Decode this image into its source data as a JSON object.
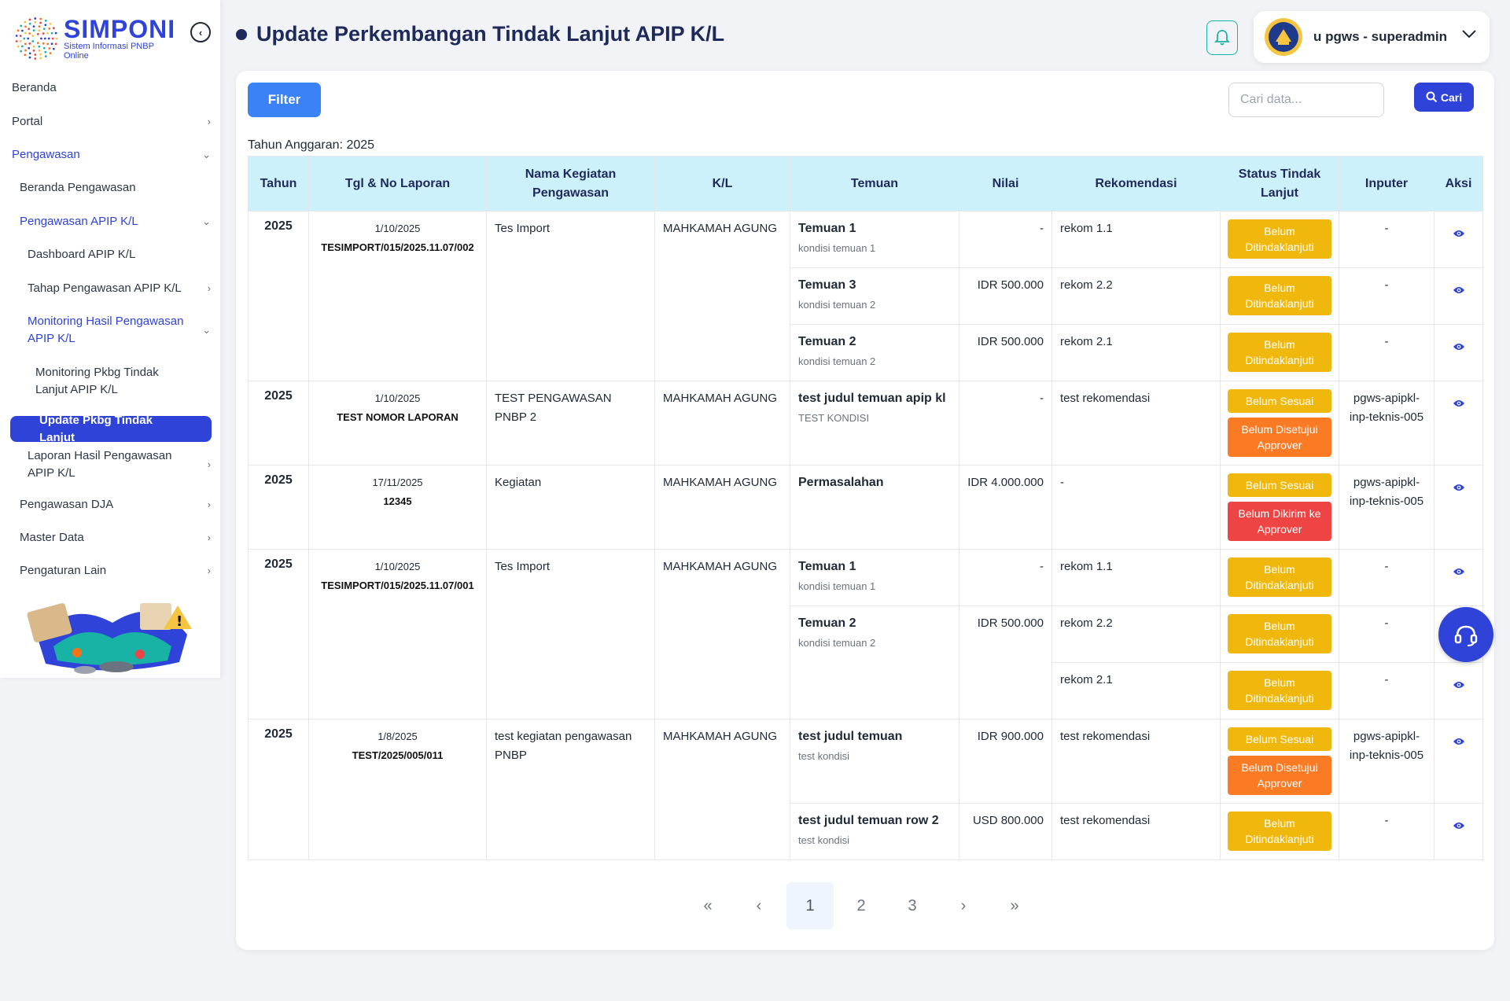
{
  "brand": {
    "title": "SIMPONI",
    "subtitle": "Sistem Informasi PNBP Online"
  },
  "sidebar": {
    "items": [
      {
        "label": "Beranda",
        "level": 0,
        "chevron": ""
      },
      {
        "label": "Portal",
        "level": 0,
        "chevron": "›"
      },
      {
        "label": "Pengawasan",
        "level": 0,
        "chevron": "⌄"
      },
      {
        "label": "Beranda Pengawasan",
        "level": 1,
        "chevron": ""
      },
      {
        "label": "Pengawasan APIP K/L",
        "level": 1,
        "chevron": "⌄"
      },
      {
        "label": "Dashboard APIP K/L",
        "level": 2,
        "chevron": ""
      },
      {
        "label": "Tahap Pengawasan APIP K/L",
        "level": 2,
        "chevron": "›"
      },
      {
        "label": "Monitoring Hasil Pengawasan APIP K/L",
        "level": 2,
        "chevron": "⌄"
      },
      {
        "label": "Monitoring Pkbg Tindak Lanjut APIP K/L",
        "level": 3,
        "chevron": ""
      },
      {
        "label": "Update Pkbg Tindak Lanjut",
        "level": 3,
        "chevron": ""
      },
      {
        "label": "Laporan Hasil Pengawasan APIP K/L",
        "level": 2,
        "chevron": "›"
      },
      {
        "label": "Pengawasan DJA",
        "level": 1,
        "chevron": "›"
      },
      {
        "label": "Master Data",
        "level": 1,
        "chevron": "›"
      },
      {
        "label": "Pengaturan Lain",
        "level": 1,
        "chevron": "›"
      }
    ]
  },
  "header": {
    "title": "Update Perkembangan Tindak Lanjut APIP K/L",
    "user": "u pgws - superadmin"
  },
  "toolbar": {
    "filter_label": "Filter",
    "search_placeholder": "Cari data...",
    "search_label": "Cari"
  },
  "year_label": "Tahun Anggaran: 2025",
  "table": {
    "headers": [
      "Tahun",
      "Tgl & No Laporan",
      "Nama Kegiatan Pengawasan",
      "K/L",
      "Temuan",
      "Nilai",
      "Rekomendasi",
      "Status Tindak Lanjut",
      "Inputer",
      "Aksi"
    ],
    "groups": [
      {
        "tahun": "2025",
        "tgl": "1/10/2025",
        "no": "TESIMPORT/015/2025.11.07/002",
        "nama": "Tes Import",
        "kl": "MAHKAMAH AGUNG",
        "temuan": [
          {
            "title": "Temuan 1",
            "sub": "kondisi temuan 1",
            "nilai": "-",
            "rek": [
              {
                "text": "rekom 1.1",
                "status": [
                  {
                    "label": "Belum Ditindaklanjuti",
                    "color": "yellow"
                  }
                ],
                "inputer": "-"
              }
            ]
          },
          {
            "title": "Temuan 3",
            "sub": "kondisi temuan 2",
            "nilai": "IDR 500.000",
            "rek": [
              {
                "text": "rekom 2.2",
                "status": [
                  {
                    "label": "Belum Ditindaklanjuti",
                    "color": "yellow"
                  }
                ],
                "inputer": "-"
              }
            ]
          },
          {
            "title": "Temuan 2",
            "sub": "kondisi temuan 2",
            "nilai": "IDR 500.000",
            "rek": [
              {
                "text": "rekom 2.1",
                "status": [
                  {
                    "label": "Belum Ditindaklanjuti",
                    "color": "yellow"
                  }
                ],
                "inputer": "-"
              }
            ]
          }
        ]
      },
      {
        "tahun": "2025",
        "tgl": "1/10/2025",
        "no": "TEST NOMOR LAPORAN",
        "nama": "TEST PENGAWASAN PNBP 2",
        "kl": "MAHKAMAH AGUNG",
        "temuan": [
          {
            "title": "test judul temuan apip kl",
            "sub": "TEST KONDISI",
            "nilai": "-",
            "rek": [
              {
                "text": "test rekomendasi",
                "status": [
                  {
                    "label": "Belum Sesuai",
                    "color": "yellow"
                  },
                  {
                    "label": "Belum Disetujui Approver",
                    "color": "orange"
                  }
                ],
                "inputer": "pgws-apipkl-inp-teknis-005"
              }
            ]
          }
        ]
      },
      {
        "tahun": "2025",
        "tgl": "17/11/2025",
        "no": "12345",
        "nama": "Kegiatan",
        "kl": "MAHKAMAH AGUNG",
        "temuan": [
          {
            "title": "Permasalahan",
            "sub": "",
            "nilai": "IDR 4.000.000",
            "rek": [
              {
                "text": "-",
                "status": [
                  {
                    "label": "Belum Sesuai",
                    "color": "yellow"
                  },
                  {
                    "label": "Belum Dikirim ke Approver",
                    "color": "red"
                  }
                ],
                "inputer": "pgws-apipkl-inp-teknis-005"
              }
            ]
          }
        ]
      },
      {
        "tahun": "2025",
        "tgl": "1/10/2025",
        "no": "TESIMPORT/015/2025.11.07/001",
        "nama": "Tes Import",
        "kl": "MAHKAMAH AGUNG",
        "temuan": [
          {
            "title": "Temuan 1",
            "sub": "kondisi temuan 1",
            "nilai": "-",
            "rek": [
              {
                "text": "rekom 1.1",
                "status": [
                  {
                    "label": "Belum Ditindaklanjuti",
                    "color": "yellow"
                  }
                ],
                "inputer": "-"
              }
            ]
          },
          {
            "title": "Temuan 2",
            "sub": "kondisi temuan 2",
            "nilai": "IDR 500.000",
            "rek": [
              {
                "text": "rekom 2.2",
                "status": [
                  {
                    "label": "Belum Ditindaklanjuti",
                    "color": "yellow"
                  }
                ],
                "inputer": "-"
              },
              {
                "text": "rekom 2.1",
                "status": [
                  {
                    "label": "Belum Ditindaklanjuti",
                    "color": "yellow"
                  }
                ],
                "inputer": "-"
              }
            ]
          }
        ]
      },
      {
        "tahun": "2025",
        "tgl": "1/8/2025",
        "no": "TEST/2025/005/011",
        "nama": "test kegiatan pengawasan PNBP",
        "kl": "MAHKAMAH AGUNG",
        "temuan": [
          {
            "title": "test judul temuan",
            "sub": "test kondisi",
            "nilai": "IDR 900.000",
            "rek": [
              {
                "text": "test rekomendasi",
                "status": [
                  {
                    "label": "Belum Sesuai",
                    "color": "yellow"
                  },
                  {
                    "label": "Belum Disetujui Approver",
                    "color": "orange"
                  }
                ],
                "inputer": "pgws-apipkl-inp-teknis-005"
              }
            ]
          },
          {
            "title": "test judul temuan row 2",
            "sub": "test kondisi",
            "nilai": "USD 800.000",
            "rek": [
              {
                "text": "test rekomendasi",
                "status": [
                  {
                    "label": "Belum Ditindaklanjuti",
                    "color": "yellow"
                  }
                ],
                "inputer": "-"
              }
            ]
          }
        ]
      }
    ]
  },
  "pagination": {
    "first": "«",
    "prev": "‹",
    "pages": [
      "1",
      "2",
      "3"
    ],
    "current": "1",
    "next": "›",
    "last": "»"
  },
  "colors": {
    "primary": "#2f43d8",
    "yellow": "#f0b80c",
    "orange": "#fb7a24",
    "red": "#ef4444",
    "header_bg": "#cdf1fb"
  }
}
